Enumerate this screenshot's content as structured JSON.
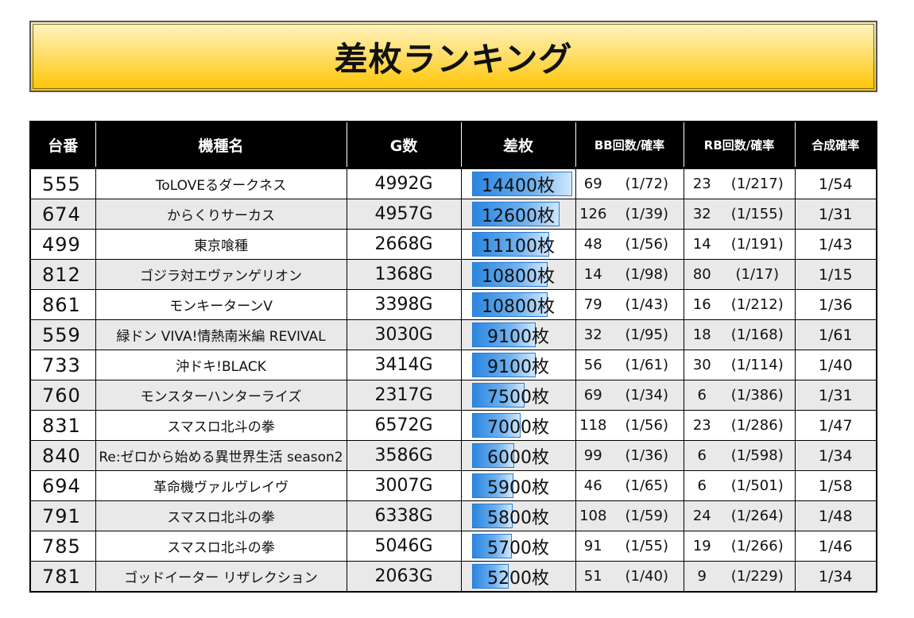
{
  "title": "差枚ランキング",
  "headers": {
    "no": "台番",
    "machine": "機種名",
    "games": "G数",
    "diff": "差枚",
    "bb": "BB回数/確率",
    "rb": "RB回数/確率",
    "combined": "合成確率"
  },
  "rows": [
    {
      "no": "555",
      "machine": "ToLOVEるダークネス",
      "games": "4992G",
      "diff": "14400枚",
      "diff_value": 14400,
      "bb": "69",
      "bb_prob": "(1/72)",
      "rb": "23",
      "rb_prob": "(1/217)",
      "combined": "1/54"
    },
    {
      "no": "674",
      "machine": "からくりサーカス",
      "games": "4957G",
      "diff": "12600枚",
      "diff_value": 12600,
      "bb": "126",
      "bb_prob": "(1/39)",
      "rb": "32",
      "rb_prob": "(1/155)",
      "combined": "1/31"
    },
    {
      "no": "499",
      "machine": "東京喰種",
      "games": "2668G",
      "diff": "11100枚",
      "diff_value": 11100,
      "bb": "48",
      "bb_prob": "(1/56)",
      "rb": "14",
      "rb_prob": "(1/191)",
      "combined": "1/43"
    },
    {
      "no": "812",
      "machine": "ゴジラ対エヴァンゲリオン",
      "games": "1368G",
      "diff": "10800枚",
      "diff_value": 10800,
      "bb": "14",
      "bb_prob": "(1/98)",
      "rb": "80",
      "rb_prob": "(1/17)",
      "combined": "1/15"
    },
    {
      "no": "861",
      "machine": "モンキーターンV",
      "games": "3398G",
      "diff": "10800枚",
      "diff_value": 10800,
      "bb": "79",
      "bb_prob": "(1/43)",
      "rb": "16",
      "rb_prob": "(1/212)",
      "combined": "1/36"
    },
    {
      "no": "559",
      "machine": "緑ドン VIVA!情熱南米編 REVIVAL",
      "games": "3030G",
      "diff": "9100枚",
      "diff_value": 9100,
      "bb": "32",
      "bb_prob": "(1/95)",
      "rb": "18",
      "rb_prob": "(1/168)",
      "combined": "1/61"
    },
    {
      "no": "733",
      "machine": "沖ドキ!BLACK",
      "games": "3414G",
      "diff": "9100枚",
      "diff_value": 9100,
      "bb": "56",
      "bb_prob": "(1/61)",
      "rb": "30",
      "rb_prob": "(1/114)",
      "combined": "1/40"
    },
    {
      "no": "760",
      "machine": "モンスターハンターライズ",
      "games": "2317G",
      "diff": "7500枚",
      "diff_value": 7500,
      "bb": "69",
      "bb_prob": "(1/34)",
      "rb": "6",
      "rb_prob": "(1/386)",
      "combined": "1/31"
    },
    {
      "no": "831",
      "machine": "スマスロ北斗の拳",
      "games": "6572G",
      "diff": "7000枚",
      "diff_value": 7000,
      "bb": "118",
      "bb_prob": "(1/56)",
      "rb": "23",
      "rb_prob": "(1/286)",
      "combined": "1/47"
    },
    {
      "no": "840",
      "machine": "Re:ゼロから始める異世界生活 season2",
      "games": "3586G",
      "diff": "6000枚",
      "diff_value": 6000,
      "bb": "99",
      "bb_prob": "(1/36)",
      "rb": "6",
      "rb_prob": "(1/598)",
      "combined": "1/34"
    },
    {
      "no": "694",
      "machine": "革命機ヴァルヴレイヴ",
      "games": "3007G",
      "diff": "5900枚",
      "diff_value": 5900,
      "bb": "46",
      "bb_prob": "(1/65)",
      "rb": "6",
      "rb_prob": "(1/501)",
      "combined": "1/58"
    },
    {
      "no": "791",
      "machine": "スマスロ北斗の拳",
      "games": "6338G",
      "diff": "5800枚",
      "diff_value": 5800,
      "bb": "108",
      "bb_prob": "(1/59)",
      "rb": "24",
      "rb_prob": "(1/264)",
      "combined": "1/48"
    },
    {
      "no": "785",
      "machine": "スマスロ北斗の拳",
      "games": "5046G",
      "diff": "5700枚",
      "diff_value": 5700,
      "bb": "91",
      "bb_prob": "(1/55)",
      "rb": "19",
      "rb_prob": "(1/266)",
      "combined": "1/46"
    },
    {
      "no": "781",
      "machine": "ゴッドイーター リザレクション",
      "games": "2063G",
      "diff": "5200枚",
      "diff_value": 5200,
      "bb": "51",
      "bb_prob": "(1/40)",
      "rb": "9",
      "rb_prob": "(1/229)",
      "combined": "1/34"
    }
  ],
  "colors": {
    "title_gradient_top": "#fff3c2",
    "title_gradient_bottom": "#ffc400",
    "header_bg": "#000000",
    "bar": "#2a86e0",
    "row_alt": "#e9e9e9"
  }
}
